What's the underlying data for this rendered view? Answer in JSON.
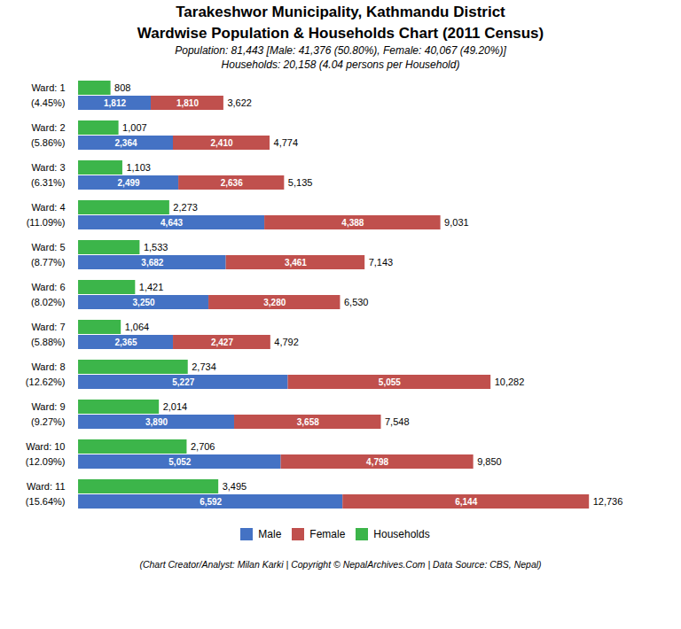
{
  "chart_data": {
    "type": "bar",
    "orientation": "horizontal",
    "title": [
      "Tarakeshwor Municipality, Kathmandu District",
      "Wardwise Population & Households Chart (2011 Census)"
    ],
    "subtitle": [
      "Population: 81,443 [Male: 41,376 (50.80%), Female: 40,067 (49.20%)]",
      "Households: 20,158 (4.04 persons per Household)"
    ],
    "caption": "(Chart Creator/Analyst: Milan Karki | Copyright © NepalArchives.Com | Data Source: CBS, Nepal)",
    "categories": [
      "Ward: 1",
      "Ward: 2",
      "Ward: 3",
      "Ward: 4",
      "Ward: 5",
      "Ward: 6",
      "Ward: 7",
      "Ward: 8",
      "Ward: 9",
      "Ward: 10",
      "Ward: 11"
    ],
    "share_labels": [
      "(4.45%)",
      "(5.86%)",
      "(6.31%)",
      "(11.09%)",
      "(8.77%)",
      "(8.02%)",
      "(5.88%)",
      "(12.62%)",
      "(9.27%)",
      "(12.09%)",
      "(15.64%)"
    ],
    "series": [
      {
        "name": "Male",
        "color": "#4472C4",
        "stacked": true,
        "values": [
          1812,
          2364,
          2499,
          4643,
          3682,
          3250,
          2365,
          5227,
          3890,
          5052,
          6592
        ],
        "value_labels": [
          "1,812",
          "2,364",
          "2,499",
          "4,643",
          "3,682",
          "3,250",
          "2,365",
          "5,227",
          "3,890",
          "5,052",
          "6,592"
        ]
      },
      {
        "name": "Female",
        "color": "#C0504D",
        "stacked": true,
        "values": [
          1810,
          2410,
          2636,
          4388,
          3461,
          3280,
          2427,
          5055,
          3658,
          4798,
          6144
        ],
        "value_labels": [
          "1,810",
          "2,410",
          "2,636",
          "4,388",
          "3,461",
          "3,280",
          "2,427",
          "5,055",
          "3,658",
          "4,798",
          "6,144"
        ]
      },
      {
        "name": "Households",
        "color": "#3CB54A",
        "stacked": false,
        "values": [
          808,
          1007,
          1103,
          2273,
          1533,
          1421,
          1064,
          2734,
          2014,
          2706,
          3495
        ],
        "value_labels": [
          "808",
          "1,007",
          "1,103",
          "2,273",
          "1,533",
          "1,421",
          "1,064",
          "2,734",
          "2,014",
          "2,706",
          "3,495"
        ]
      }
    ],
    "totals": [
      3622,
      4774,
      5135,
      9031,
      7143,
      6530,
      4792,
      10282,
      7548,
      9850,
      12736
    ],
    "total_labels": [
      "3,622",
      "4,774",
      "5,135",
      "9,031",
      "7,143",
      "6,530",
      "4,792",
      "10,282",
      "7,548",
      "9,850",
      "12,736"
    ],
    "xlim": [
      -200,
      14500
    ],
    "tick_labels": false,
    "grid": false,
    "legend": "bottom",
    "data_labels": true
  }
}
